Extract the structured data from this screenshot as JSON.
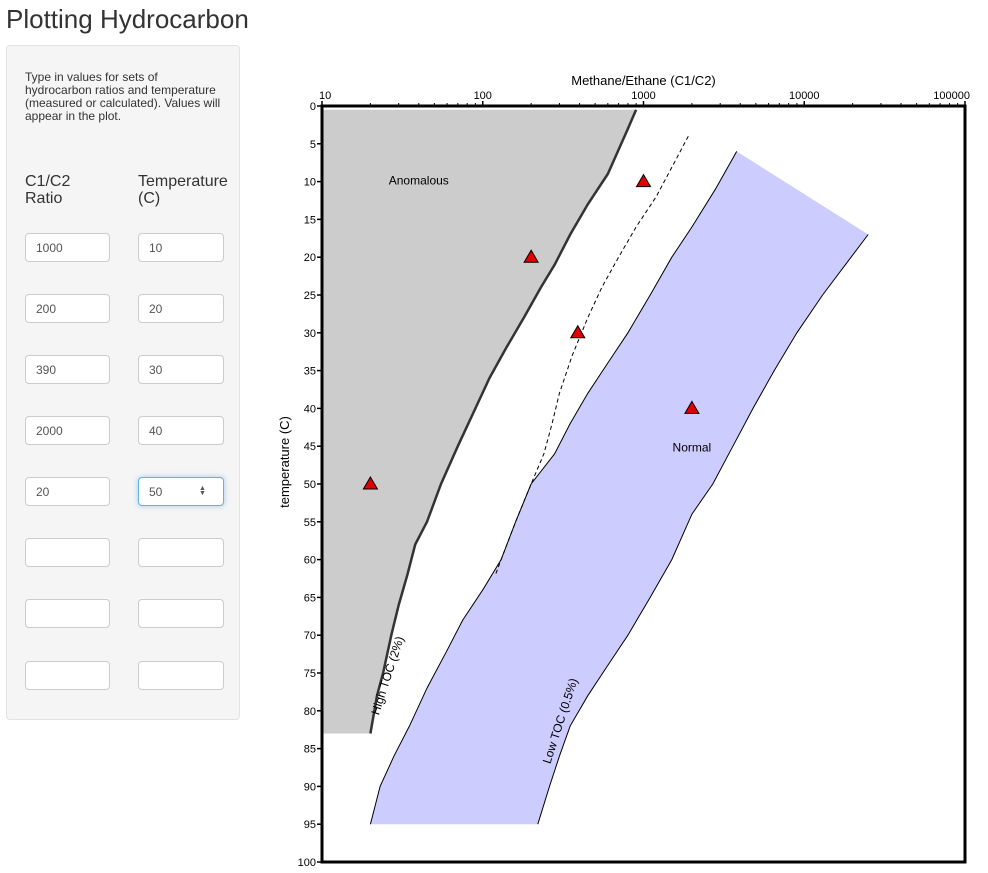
{
  "title": "Plotting Hydrocarbon",
  "sidebar": {
    "instructions": "Type in values for sets of hydrocarbon ratios and temperature (measured or calculated). Values will appear in the plot.",
    "col_ratio_line1": "C1/C2",
    "col_ratio_line2": "Ratio",
    "col_temp_line1": "Temperature",
    "col_temp_line2": "(C)",
    "rows": [
      {
        "ratio": "1000",
        "temp": "10"
      },
      {
        "ratio": "200",
        "temp": "20"
      },
      {
        "ratio": "390",
        "temp": "30"
      },
      {
        "ratio": "2000",
        "temp": "40"
      },
      {
        "ratio": "20",
        "temp": "50"
      },
      {
        "ratio": "",
        "temp": ""
      },
      {
        "ratio": "",
        "temp": ""
      },
      {
        "ratio": "",
        "temp": ""
      }
    ]
  },
  "chart_data": {
    "type": "scatter",
    "xlabel": "Methane/Ethane (C1/C2)",
    "ylabel": "temperature (C)",
    "x_scale": "log",
    "xlim": [
      10,
      100000
    ],
    "ylim": [
      0,
      100
    ],
    "y_inverted": true,
    "x_position": "top",
    "x_ticks": [
      "10",
      "100",
      "1000",
      "10000",
      "100000"
    ],
    "y_ticks": [
      "0",
      "5",
      "10",
      "15",
      "20",
      "25",
      "30",
      "35",
      "40",
      "45",
      "50",
      "55",
      "60",
      "65",
      "70",
      "75",
      "80",
      "85",
      "90",
      "95",
      "100"
    ],
    "points": [
      {
        "x": 1000,
        "y": 10
      },
      {
        "x": 200,
        "y": 20
      },
      {
        "x": 390,
        "y": 30
      },
      {
        "x": 2000,
        "y": 40
      },
      {
        "x": 20,
        "y": 50
      }
    ],
    "point_color": "#e00000",
    "region_labels": {
      "anomalous": "Anomalous",
      "normal": "Normal",
      "high_toc": "High TOC (2%)",
      "low_toc": "Low TOC (0.5%)"
    },
    "anomalous_boundary": [
      [
        900,
        0.5
      ],
      [
        800,
        3
      ],
      [
        600,
        9
      ],
      [
        450,
        13
      ],
      [
        350,
        17
      ],
      [
        280,
        21
      ],
      [
        230,
        24
      ],
      [
        180,
        28
      ],
      [
        140,
        32
      ],
      [
        110,
        36
      ],
      [
        90,
        40
      ],
      [
        70,
        45
      ],
      [
        55,
        50
      ],
      [
        45,
        55
      ],
      [
        38,
        58
      ],
      [
        34,
        62
      ],
      [
        30,
        66
      ],
      [
        27,
        70
      ],
      [
        24,
        75
      ],
      [
        22,
        78
      ],
      [
        20,
        83
      ],
      [
        10,
        83
      ],
      [
        10,
        0.5
      ]
    ],
    "dashed_curve": [
      [
        1900,
        4
      ],
      [
        1600,
        7
      ],
      [
        1200,
        12
      ],
      [
        900,
        16
      ],
      [
        700,
        20
      ],
      [
        550,
        24
      ],
      [
        450,
        28
      ],
      [
        360,
        33
      ],
      [
        300,
        38
      ],
      [
        270,
        42
      ],
      [
        240,
        46
      ],
      [
        200,
        50
      ],
      [
        160,
        55
      ],
      [
        130,
        60
      ],
      [
        120,
        62
      ]
    ],
    "normal_region_left": [
      [
        3800,
        6
      ],
      [
        2800,
        11
      ],
      [
        2000,
        16
      ],
      [
        1500,
        20
      ],
      [
        1100,
        25
      ],
      [
        800,
        30
      ],
      [
        600,
        34
      ],
      [
        450,
        38
      ],
      [
        350,
        42
      ],
      [
        280,
        46
      ],
      [
        200,
        50
      ],
      [
        160,
        55
      ],
      [
        130,
        60
      ],
      [
        100,
        64
      ],
      [
        75,
        68
      ],
      [
        60,
        72
      ],
      [
        45,
        77
      ],
      [
        35,
        82
      ],
      [
        28,
        86
      ],
      [
        23,
        90
      ],
      [
        20,
        95
      ]
    ],
    "normal_region_right": [
      [
        25000,
        17
      ],
      [
        18000,
        21
      ],
      [
        13000,
        25
      ],
      [
        9000,
        30
      ],
      [
        6500,
        35
      ],
      [
        4800,
        40
      ],
      [
        3600,
        45
      ],
      [
        2700,
        50
      ],
      [
        2000,
        54
      ],
      [
        1500,
        60
      ],
      [
        1100,
        65
      ],
      [
        800,
        70
      ],
      [
        600,
        74
      ],
      [
        450,
        78
      ],
      [
        350,
        82
      ],
      [
        300,
        86
      ],
      [
        260,
        90
      ],
      [
        220,
        95
      ]
    ],
    "normal_fill_color": "#ccccff"
  }
}
